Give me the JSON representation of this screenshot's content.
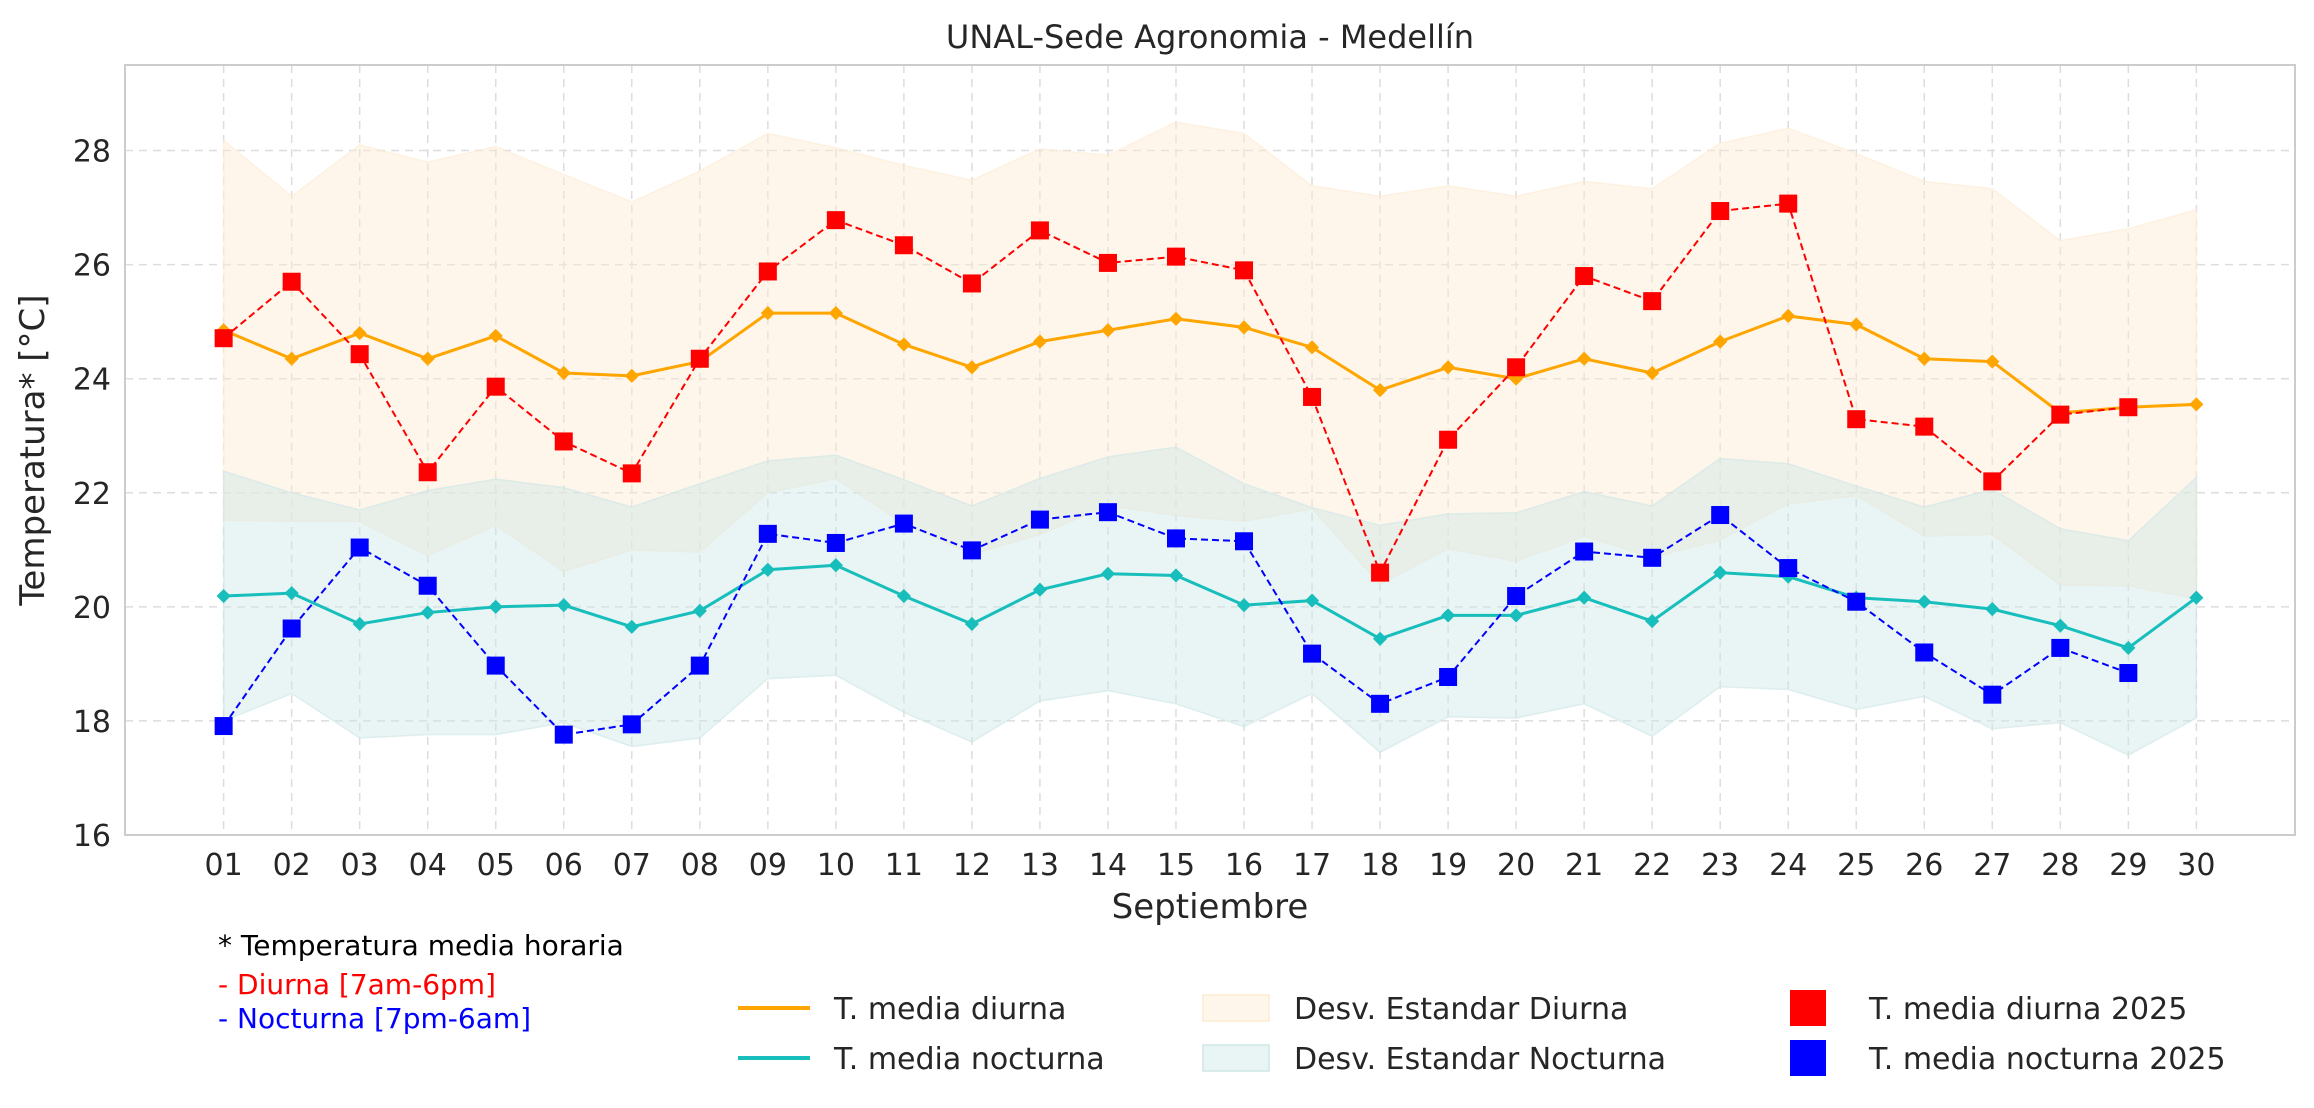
{
  "chart_data": {
    "type": "line",
    "title": "UNAL-Sede Agronomia - Medellín",
    "xlabel": "Septiembre",
    "ylabel": "Temperatura* [°C]",
    "ylim": [
      16,
      29.5
    ],
    "xlim": [
      -0.45,
      31.45
    ],
    "yticks": [
      16,
      18,
      20,
      22,
      24,
      26,
      28
    ],
    "grid": true,
    "categories": [
      "01",
      "02",
      "03",
      "04",
      "05",
      "06",
      "07",
      "08",
      "09",
      "10",
      "11",
      "12",
      "13",
      "14",
      "15",
      "16",
      "17",
      "18",
      "19",
      "20",
      "21",
      "22",
      "23",
      "24",
      "25",
      "26",
      "27",
      "28",
      "29",
      "30"
    ],
    "series": [
      {
        "name": "T. media diurna",
        "color": "#FFA500",
        "kind": "line",
        "values": [
          24.85,
          24.35,
          24.8,
          24.35,
          24.75,
          24.1,
          24.05,
          24.3,
          25.15,
          25.15,
          24.6,
          24.2,
          24.65,
          24.85,
          25.05,
          24.9,
          24.55,
          23.8,
          24.2,
          24.0,
          24.35,
          24.1,
          24.65,
          25.1,
          24.95,
          24.35,
          24.3,
          23.4,
          23.5,
          23.55
        ]
      },
      {
        "name": "T. media nocturna",
        "color": "#17BEBB",
        "kind": "line",
        "values": [
          20.19,
          20.24,
          19.7,
          19.9,
          20.0,
          20.03,
          19.65,
          19.93,
          20.65,
          20.73,
          20.19,
          19.7,
          20.3,
          20.58,
          20.55,
          20.03,
          20.11,
          19.44,
          19.85,
          19.85,
          20.16,
          19.75,
          20.6,
          20.53,
          20.16,
          20.09,
          19.96,
          19.67,
          19.28,
          20.16
        ]
      },
      {
        "name": "Desv. Estandar Diurna",
        "color": "#FDEBD3",
        "kind": "band",
        "of": 0,
        "std": [
          3.33,
          2.85,
          3.3,
          3.45,
          3.32,
          3.48,
          3.05,
          3.34,
          3.15,
          2.9,
          3.14,
          3.28,
          3.38,
          3.07,
          3.45,
          3.4,
          2.83,
          3.4,
          3.18,
          3.2,
          3.11,
          3.23,
          3.48,
          3.29,
          3.0,
          3.11,
          3.03,
          3.02,
          3.13,
          3.41
        ]
      },
      {
        "name": "Desv. Estandar Nocturna",
        "color": "#CFE6E6",
        "kind": "band",
        "of": 1,
        "std": [
          2.19,
          1.76,
          2.0,
          2.14,
          2.24,
          2.06,
          2.1,
          2.23,
          1.91,
          1.93,
          2.04,
          2.07,
          1.95,
          2.05,
          2.25,
          2.13,
          1.63,
          1.99,
          1.78,
          1.8,
          1.86,
          2.02,
          2.0,
          1.98,
          1.96,
          1.66,
          2.1,
          1.7,
          1.88,
          2.11
        ]
      },
      {
        "name": "T. media diurna 2025",
        "color": "#FF0000",
        "kind": "markers",
        "values": [
          24.71,
          25.7,
          24.43,
          22.36,
          23.86,
          22.9,
          22.34,
          24.35,
          25.88,
          26.78,
          26.34,
          25.67,
          26.6,
          26.03,
          26.14,
          25.9,
          23.68,
          20.6,
          22.93,
          24.2,
          25.8,
          25.36,
          26.94,
          27.07,
          23.29,
          23.16,
          22.2,
          23.37,
          23.5,
          null
        ]
      },
      {
        "name": "T. media nocturna 2025",
        "color": "#0000FF",
        "kind": "markers",
        "values": [
          17.91,
          19.62,
          21.04,
          20.37,
          18.97,
          17.76,
          17.94,
          18.97,
          21.28,
          21.12,
          21.46,
          20.99,
          21.53,
          21.66,
          21.2,
          21.15,
          19.18,
          18.3,
          18.77,
          20.19,
          20.97,
          20.86,
          21.61,
          20.68,
          20.09,
          19.2,
          18.46,
          19.28,
          18.84,
          null
        ]
      }
    ],
    "legend_placement": "bottom"
  },
  "notes": {
    "title": "* Temperatura media horaria",
    "diurna": "- Diurna [7am-6pm]",
    "nocturna": "- Nocturna [7pm-6am]",
    "diurna_color": "#FF0000",
    "nocturna_color": "#0000FF"
  }
}
